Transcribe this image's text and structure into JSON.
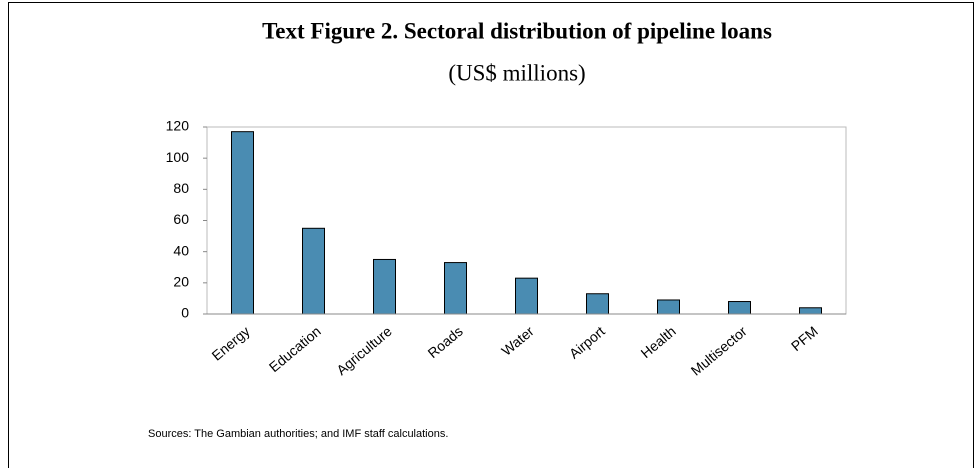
{
  "chart_data": {
    "type": "bar",
    "title": "Text Figure 2. Sectoral distribution of pipeline loans",
    "subtitle": "(US$ millions)",
    "categories": [
      "Energy",
      "Education",
      "Agriculture",
      "Roads",
      "Water",
      "Airport",
      "Health",
      "Multisector",
      "PFM"
    ],
    "values": [
      117,
      55,
      35,
      33,
      23,
      13,
      9,
      8,
      4
    ],
    "color": "#4a8cb2",
    "ylim": [
      0,
      120
    ],
    "yticks": [
      0,
      20,
      40,
      60,
      80,
      100,
      120
    ],
    "source": "Sources: The Gambian authorities; and IMF staff calculations."
  }
}
